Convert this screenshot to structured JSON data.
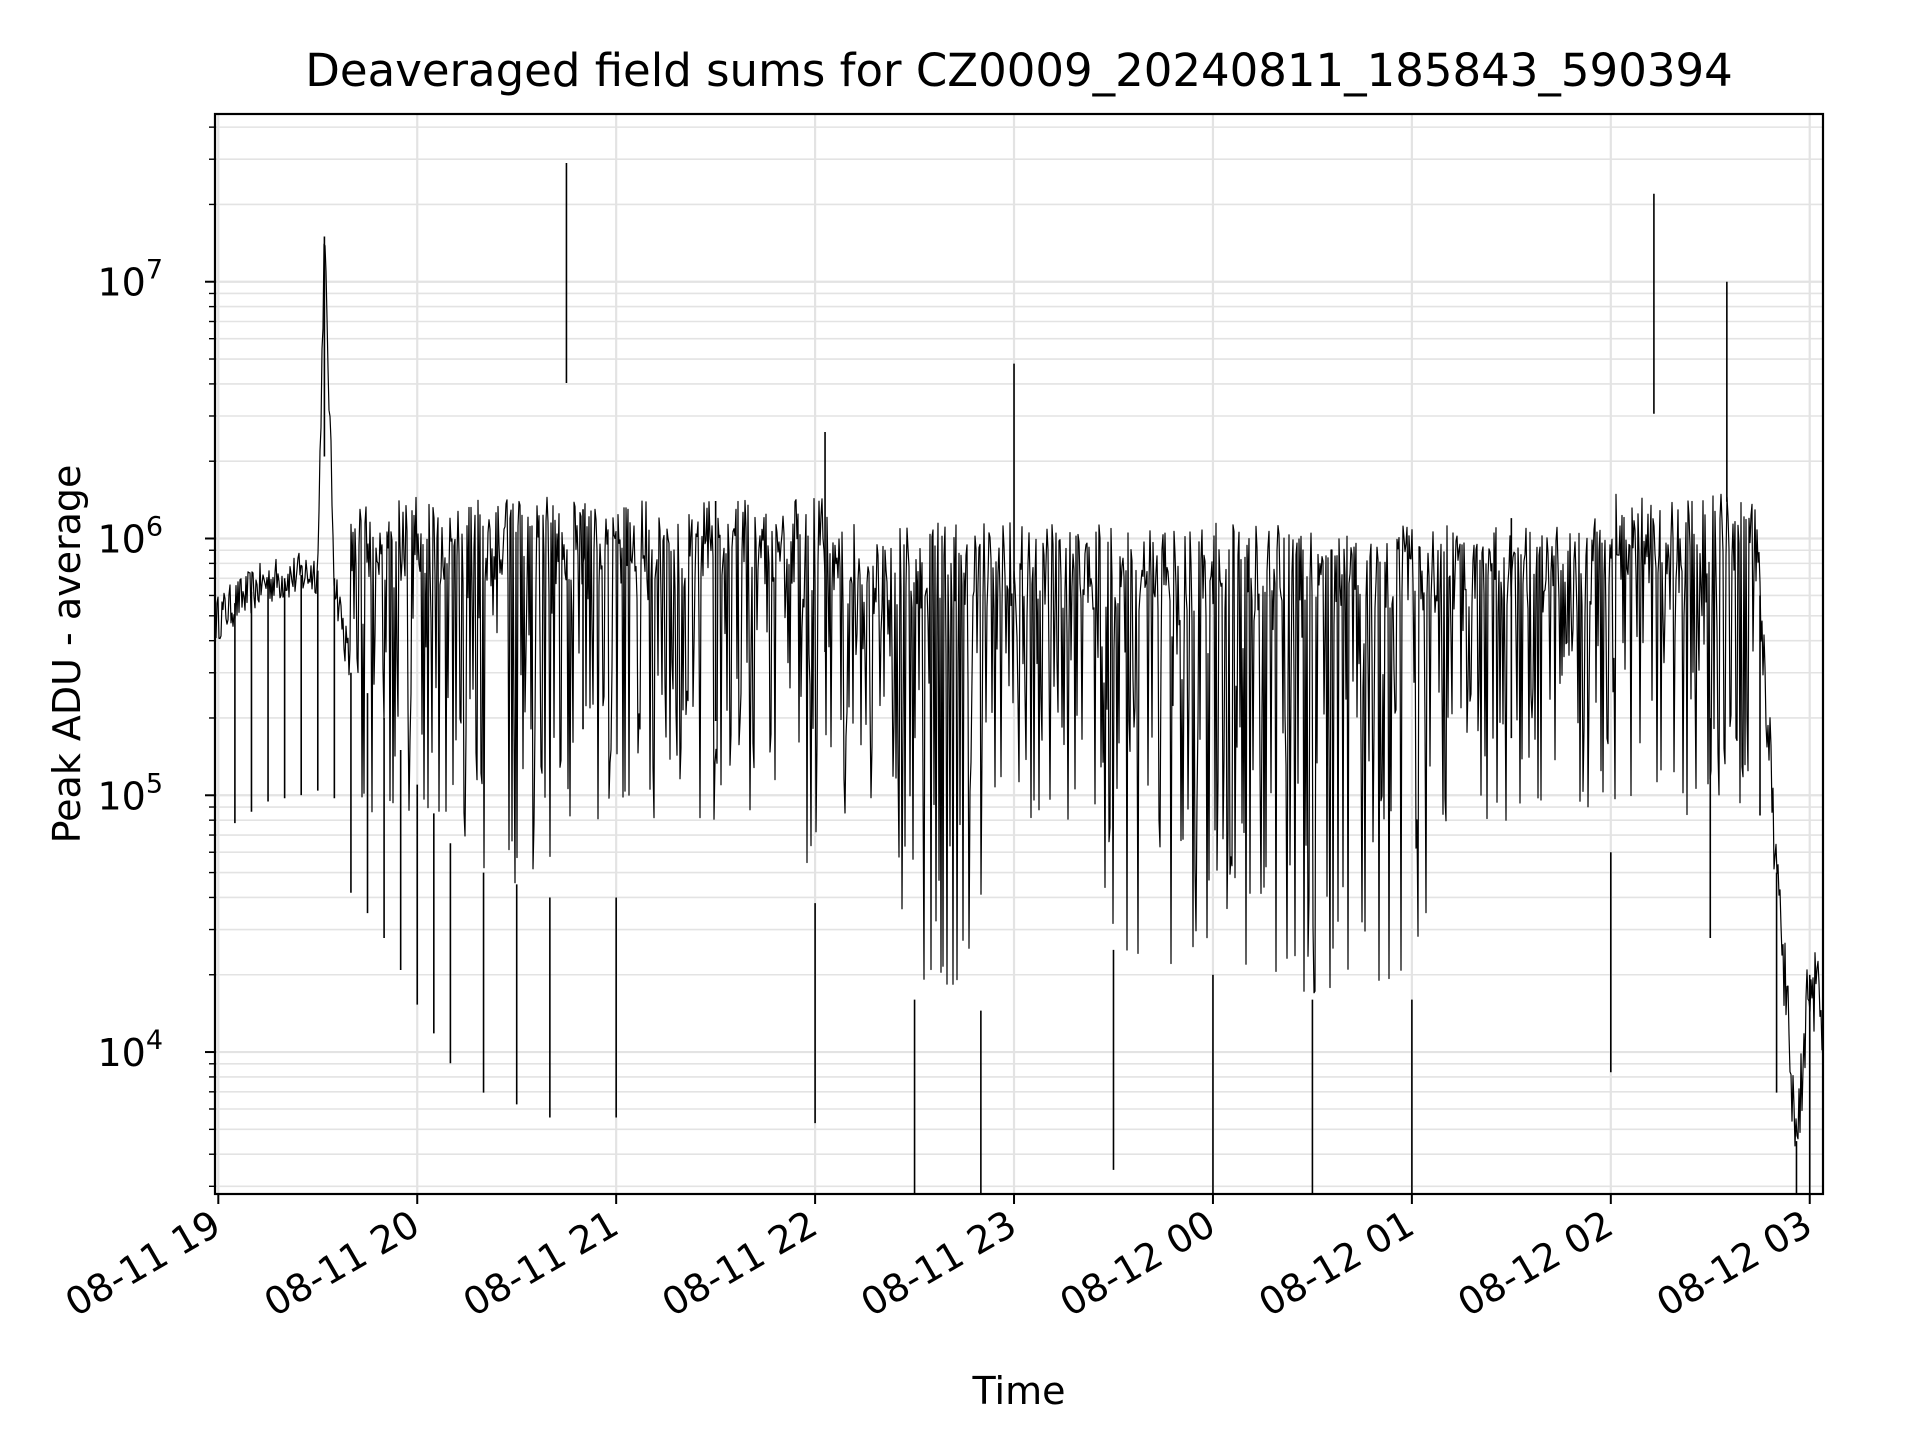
{
  "chart_data": {
    "type": "line",
    "title": "Deaveraged field sums for CZ0009_20240811_185843_590394",
    "xlabel": "Time",
    "ylabel": "Peak ADU - average",
    "yscale": "log",
    "ylim": [
      2800,
      45000000
    ],
    "xlim": [
      "2024-08-11 18:59",
      "2024-08-12 03:04"
    ],
    "grid": true,
    "legend": "none",
    "line_color": "#000000",
    "grid_color": "#e3e3e3",
    "x_ticks": [
      {
        "label": "08-11 19",
        "t": "2024-08-11 19:00"
      },
      {
        "label": "08-11 20",
        "t": "2024-08-11 20:00"
      },
      {
        "label": "08-11 21",
        "t": "2024-08-11 21:00"
      },
      {
        "label": "08-11 22",
        "t": "2024-08-11 22:00"
      },
      {
        "label": "08-11 23",
        "t": "2024-08-11 23:00"
      },
      {
        "label": "08-12 00",
        "t": "2024-08-12 00:00"
      },
      {
        "label": "08-12 01",
        "t": "2024-08-12 01:00"
      },
      {
        "label": "08-12 02",
        "t": "2024-08-12 02:00"
      },
      {
        "label": "08-12 03",
        "t": "2024-08-12 03:00"
      }
    ],
    "y_ticks": [
      {
        "base": "10",
        "exp": "4",
        "value": 10000
      },
      {
        "base": "10",
        "exp": "5",
        "value": 100000
      },
      {
        "base": "10",
        "exp": "6",
        "value": 1000000
      },
      {
        "base": "10",
        "exp": "7",
        "value": 10000000
      }
    ],
    "series": [
      {
        "points": [
          [
            "2024-08-11 18:59",
            480000
          ],
          [
            "2024-08-11 19:05",
            560000
          ],
          [
            "2024-08-11 19:10",
            620000
          ],
          [
            "2024-08-11 19:15",
            680000
          ],
          [
            "2024-08-11 19:20",
            700000
          ],
          [
            "2024-08-11 19:25",
            720000
          ],
          [
            "2024-08-11 19:30",
            750000
          ],
          [
            "2024-08-11 19:32",
            15000000
          ],
          [
            "2024-08-11 19:35",
            700000
          ],
          [
            "2024-08-11 19:40",
            300000
          ],
          [
            "2024-08-11 19:45",
            250000
          ],
          [
            "2024-08-11 19:50",
            200000
          ],
          [
            "2024-08-11 19:55",
            150000
          ],
          [
            "2024-08-11 20:00",
            110000
          ],
          [
            "2024-08-11 20:05",
            85000
          ],
          [
            "2024-08-11 20:10",
            65000
          ],
          [
            "2024-08-11 20:20",
            50000
          ],
          [
            "2024-08-11 20:30",
            45000
          ],
          [
            "2024-08-11 20:40",
            40000
          ],
          [
            "2024-08-11 20:45",
            29000000
          ],
          [
            "2024-08-11 20:50",
            1300000
          ],
          [
            "2024-08-11 21:00",
            40000
          ],
          [
            "2024-08-11 21:30",
            1400000
          ],
          [
            "2024-08-11 22:00",
            38000
          ],
          [
            "2024-08-11 22:03",
            2600000
          ],
          [
            "2024-08-11 22:30",
            16000
          ],
          [
            "2024-08-11 22:50",
            14500
          ],
          [
            "2024-08-11 23:00",
            4800000
          ],
          [
            "2024-08-11 23:30",
            25000
          ],
          [
            "2024-08-12 00:00",
            20000
          ],
          [
            "2024-08-12 00:30",
            16000
          ],
          [
            "2024-08-12 01:00",
            16000
          ],
          [
            "2024-08-12 01:30",
            1200000
          ],
          [
            "2024-08-12 02:00",
            60000
          ],
          [
            "2024-08-12 02:13",
            22000000
          ],
          [
            "2024-08-12 02:30",
            200000
          ],
          [
            "2024-08-12 02:35",
            10000000
          ],
          [
            "2024-08-12 02:45",
            600000
          ],
          [
            "2024-08-12 02:50",
            50000
          ],
          [
            "2024-08-12 02:56",
            4500
          ],
          [
            "2024-08-12 03:00",
            20000
          ],
          [
            "2024-08-12 03:04",
            13000
          ]
        ]
      }
    ]
  }
}
